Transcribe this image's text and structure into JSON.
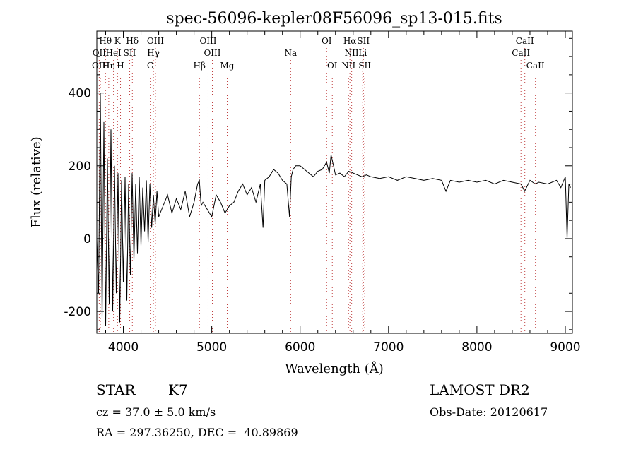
{
  "chart_data": {
    "type": "line",
    "title": "spec-56096-kepler08F56096_sp13-015.fits",
    "xlabel": "Wavelength (Å)",
    "ylabel": "Flux (relative)",
    "xlim": [
      3700,
      9080
    ],
    "ylim": [
      -260,
      570
    ],
    "xticks": [
      4000,
      5000,
      6000,
      7000,
      8000,
      9000
    ],
    "yticks": [
      -200,
      0,
      200,
      400
    ],
    "grid": false,
    "line_color": "#000000",
    "marker_line_color": "#c04040",
    "spectral_lines": [
      {
        "label": "Hθ",
        "x": 3798,
        "row": 0
      },
      {
        "label": "K",
        "x": 3934,
        "row": 0
      },
      {
        "label": "Hδ",
        "x": 4102,
        "row": 0
      },
      {
        "label": "OIII",
        "x": 4363,
        "row": 0
      },
      {
        "label": "OIII",
        "x": 4959,
        "row": 0
      },
      {
        "label": "OI",
        "x": 6300,
        "row": 0
      },
      {
        "label": "Hα",
        "x": 6563,
        "row": 0
      },
      {
        "label": "SII",
        "x": 6716,
        "row": 0
      },
      {
        "label": "CaII",
        "x": 8542,
        "row": 0
      },
      {
        "label": "OII",
        "x": 3727,
        "row": 1
      },
      {
        "label": "HeI",
        "x": 3889,
        "row": 1
      },
      {
        "label": "SII",
        "x": 4072,
        "row": 1
      },
      {
        "label": "Hγ",
        "x": 4340,
        "row": 1
      },
      {
        "label": "OIII",
        "x": 5007,
        "row": 1
      },
      {
        "label": "Na",
        "x": 5893,
        "row": 1
      },
      {
        "label": "NII",
        "x": 6583,
        "row": 1
      },
      {
        "label": "Li",
        "x": 6708,
        "row": 1
      },
      {
        "label": "CaII",
        "x": 8498,
        "row": 1
      },
      {
        "label": "OIII",
        "x": 3740,
        "row": 2
      },
      {
        "label": "Hη",
        "x": 3835,
        "row": 2
      },
      {
        "label": "H",
        "x": 3968,
        "row": 2
      },
      {
        "label": "G",
        "x": 4305,
        "row": 2
      },
      {
        "label": "Hβ",
        "x": 4861,
        "row": 2
      },
      {
        "label": "Mg",
        "x": 5175,
        "row": 2
      },
      {
        "label": "OI",
        "x": 6364,
        "row": 2
      },
      {
        "label": "NII",
        "x": 6548,
        "row": 2
      },
      {
        "label": "SII",
        "x": 6731,
        "row": 2
      },
      {
        "label": "CaII",
        "x": 8662,
        "row": 2
      }
    ],
    "series": [
      {
        "x": [
          3700,
          3720,
          3740,
          3760,
          3780,
          3800,
          3820,
          3840,
          3860,
          3880,
          3900,
          3920,
          3940,
          3960,
          3980,
          4000,
          4020,
          4040,
          4060,
          4080,
          4100,
          4120,
          4140,
          4160,
          4180,
          4200,
          4220,
          4240,
          4260,
          4280,
          4300,
          4320,
          4340,
          4360,
          4380,
          4400,
          4450,
          4500,
          4550,
          4600,
          4650,
          4700,
          4750,
          4800,
          4840,
          4860,
          4880,
          4900,
          4950,
          5000,
          5050,
          5100,
          5150,
          5200,
          5250,
          5300,
          5350,
          5400,
          5450,
          5500,
          5550,
          5580,
          5600,
          5650,
          5700,
          5750,
          5800,
          5850,
          5880,
          5900,
          5920,
          5950,
          6000,
          6050,
          6100,
          6150,
          6200,
          6250,
          6300,
          6330,
          6350,
          6400,
          6450,
          6500,
          6550,
          6600,
          6650,
          6700,
          6750,
          6800,
          6900,
          7000,
          7100,
          7200,
          7300,
          7400,
          7500,
          7600,
          7650,
          7700,
          7800,
          7900,
          8000,
          8100,
          8200,
          8300,
          8400,
          8500,
          8540,
          8600,
          8660,
          8700,
          8800,
          8900,
          8950,
          9000,
          9020,
          9040,
          9060
        ],
        "y": [
          0,
          -150,
          400,
          -220,
          320,
          -240,
          220,
          -180,
          300,
          -200,
          200,
          -150,
          180,
          -230,
          160,
          -120,
          170,
          -170,
          150,
          -100,
          180,
          -60,
          150,
          -40,
          170,
          -20,
          140,
          20,
          160,
          -10,
          150,
          30,
          120,
          40,
          130,
          60,
          90,
          120,
          70,
          110,
          80,
          130,
          60,
          100,
          150,
          160,
          90,
          100,
          80,
          60,
          120,
          100,
          70,
          90,
          100,
          130,
          150,
          120,
          140,
          100,
          150,
          30,
          160,
          170,
          190,
          180,
          160,
          150,
          60,
          170,
          190,
          200,
          200,
          190,
          180,
          170,
          185,
          190,
          210,
          180,
          230,
          175,
          180,
          170,
          185,
          180,
          175,
          170,
          175,
          170,
          165,
          170,
          160,
          170,
          165,
          160,
          165,
          160,
          130,
          160,
          155,
          160,
          155,
          160,
          150,
          160,
          155,
          150,
          130,
          160,
          150,
          155,
          150,
          160,
          140,
          170,
          0,
          150,
          140
        ]
      }
    ]
  },
  "info": {
    "class_label": "STAR",
    "subclass": "K7",
    "survey": "LAMOST DR2",
    "cz": "cz = 37.0 ± 5.0 km/s",
    "obs_date": "Obs-Date: 20120617",
    "coords": "RA = 297.36250, DEC =  40.89869"
  }
}
